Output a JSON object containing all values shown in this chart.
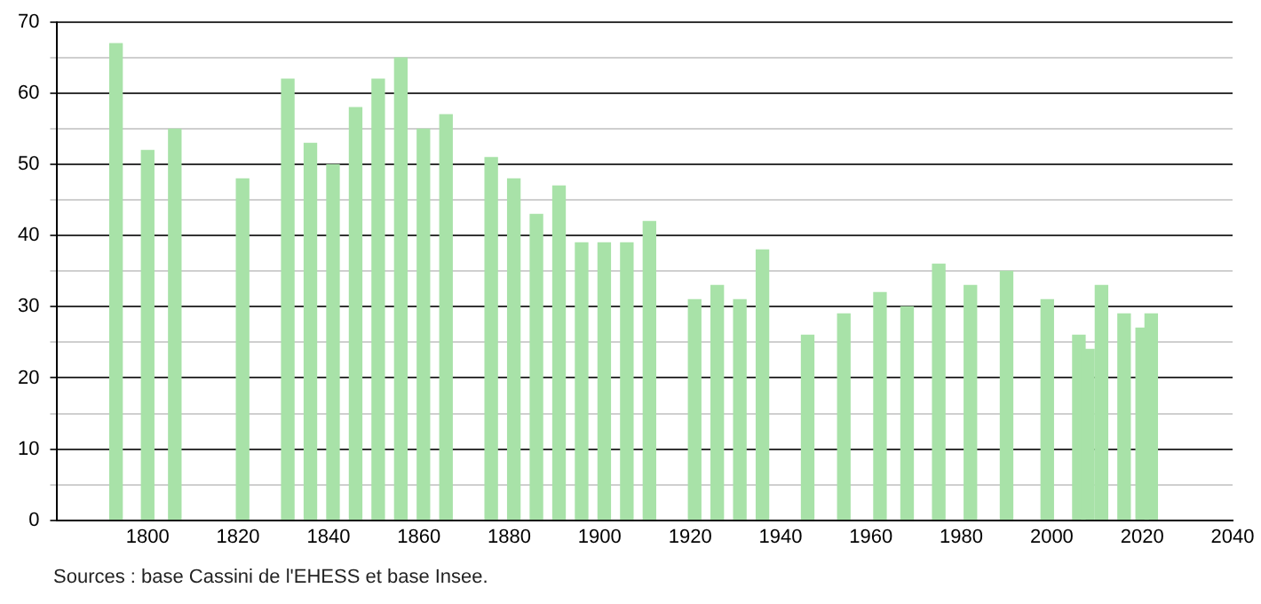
{
  "chart_data": {
    "type": "bar",
    "color": "#a8e2a8",
    "x": [
      1793,
      1800,
      1806,
      1821,
      1831,
      1836,
      1841,
      1846,
      1851,
      1856,
      1861,
      1866,
      1876,
      1881,
      1886,
      1891,
      1896,
      1901,
      1906,
      1911,
      1921,
      1926,
      1931,
      1936,
      1946,
      1954,
      1962,
      1968,
      1975,
      1982,
      1990,
      1999,
      2006,
      2008,
      2011,
      2016,
      2020,
      2022
    ],
    "values": [
      67,
      52,
      55,
      48,
      62,
      53,
      50,
      58,
      62,
      65,
      55,
      57,
      51,
      48,
      43,
      47,
      39,
      39,
      39,
      42,
      31,
      33,
      31,
      38,
      26,
      29,
      32,
      30,
      36,
      33,
      35,
      31,
      26,
      24,
      33,
      29,
      27,
      29
    ],
    "xlim": [
      1780,
      2040
    ],
    "xticks": [
      1800,
      1820,
      1840,
      1860,
      1880,
      1900,
      1920,
      1940,
      1960,
      1980,
      2000,
      2020,
      2040
    ],
    "ylim": [
      0,
      70
    ],
    "yticks": [
      0,
      {
        "value": 5,
        "label": null
      },
      10,
      {
        "value": 15,
        "label": null
      },
      20,
      {
        "value": 25,
        "label": null
      },
      30,
      {
        "value": 35,
        "label": null
      },
      40,
      {
        "value": 45,
        "label": null
      },
      50,
      {
        "value": 55,
        "label": null
      },
      60,
      {
        "value": 65,
        "label": null
      },
      70
    ],
    "grid": "y",
    "legend": false,
    "annotations": [
      "Sources : base Cassini de l'EHESS et base Insee."
    ]
  }
}
